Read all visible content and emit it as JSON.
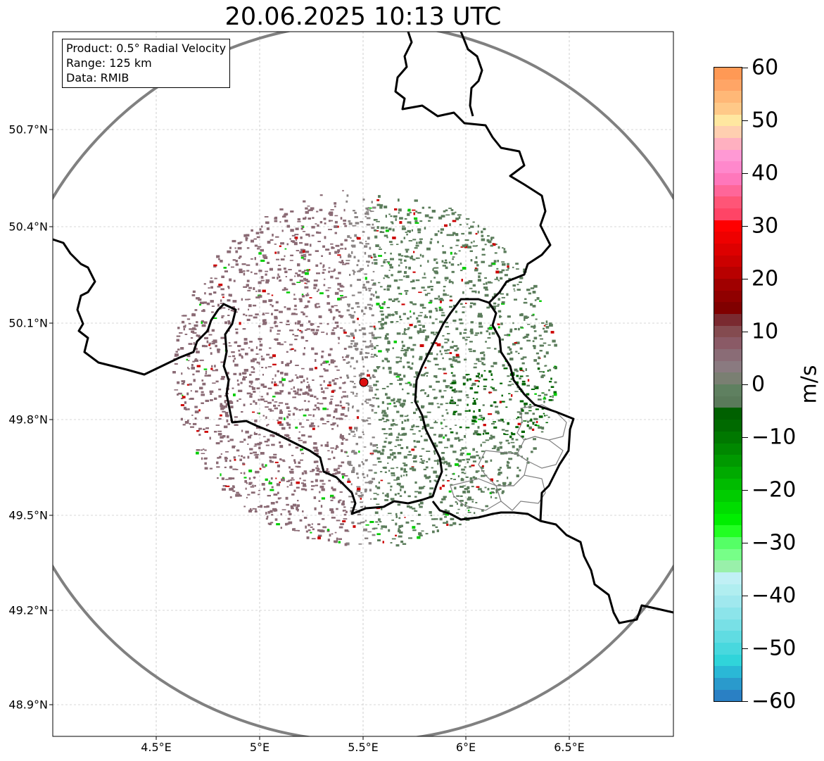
{
  "title": "20.06.2025 10:13 UTC",
  "info_box": {
    "line1": "Product: 0.5° Radial Velocity",
    "line2": "Range: 125 km",
    "line3": "Data: RMIB"
  },
  "axes": {
    "lat_ticks": [
      "50.7°N",
      "50.4°N",
      "50.1°N",
      "49.8°N",
      "49.5°N",
      "49.2°N",
      "48.9°N"
    ],
    "lon_ticks": [
      "4.5°E",
      "5°E",
      "5.5°E",
      "6°E",
      "6.5°E"
    ]
  },
  "colorbar": {
    "unit": "m/s",
    "tick_labels": [
      "60",
      "50",
      "40",
      "30",
      "20",
      "10",
      "0",
      "−10",
      "−20",
      "−30",
      "−40",
      "−50",
      "−60"
    ],
    "range": [
      -60,
      60
    ],
    "colors_top_to_bottom": [
      "#ff9955",
      "#ffa566",
      "#ffb877",
      "#ffc988",
      "#ffe7a0",
      "#ffcfb0",
      "#ffb0c0",
      "#ff99d4",
      "#ff88cc",
      "#ff77bb",
      "#ff6699",
      "#ff5577",
      "#ff4466",
      "#ff0000",
      "#ee0000",
      "#dd0000",
      "#cc0000",
      "#b80000",
      "#a00000",
      "#900000",
      "#800000",
      "#7a2a30",
      "#844b50",
      "#8a5a66",
      "#8a6c76",
      "#8a7a80",
      "#7a7f72",
      "#5f8060",
      "#5a7a5a",
      "#006000",
      "#006a00",
      "#007800",
      "#008800",
      "#009900",
      "#00aa00",
      "#00bb00",
      "#00cc00",
      "#00dd00",
      "#00ee00",
      "#22ff22",
      "#55ff66",
      "#77ff88",
      "#99f0aa",
      "#c0f0f5",
      "#b0eef0",
      "#a0e8ee",
      "#8ce4ea",
      "#78e0e6",
      "#60dce2",
      "#48d8de",
      "#30d4da",
      "#2ab8d6",
      "#2a9acc",
      "#2a80c4"
    ]
  },
  "map": {
    "radar_site": {
      "lon": 5.5,
      "lat": 49.92,
      "color": "#dd1111"
    },
    "range_ring_color": "#808080",
    "border_color": "#000000",
    "echo_colors": {
      "approaching": "#5c7d5c",
      "receding": "#8a6a74",
      "neutral": "#8a8484",
      "strong_approaching": "#006400",
      "noise_red": "#cc0000",
      "noise_green": "#00cc00"
    }
  }
}
